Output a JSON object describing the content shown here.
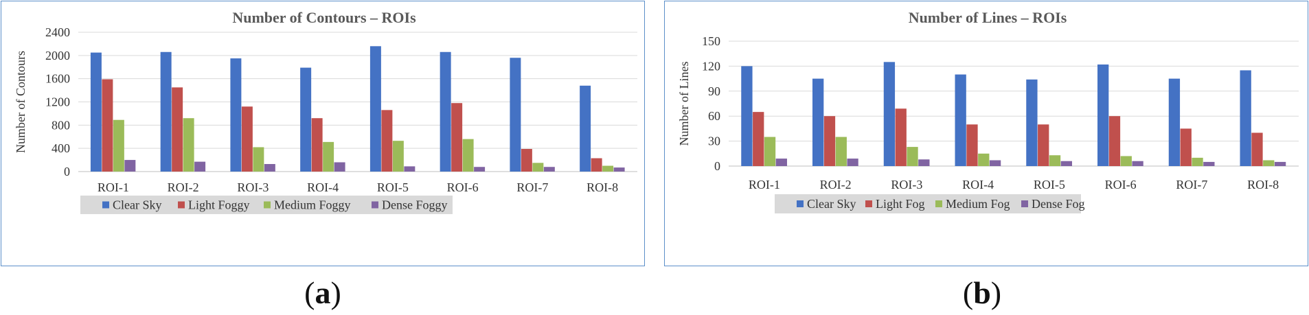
{
  "colors": {
    "series": [
      "#4472C4",
      "#C0504D",
      "#9BBB59",
      "#8064A2"
    ],
    "grid": "#d9d9d9",
    "axis": "#bfbfbf",
    "legend_bg": "#d9d9d9"
  },
  "subfigure_labels": {
    "a": "a",
    "b": "b"
  },
  "chart_data": [
    {
      "type": "bar",
      "title": "Number of Contours – ROIs",
      "xlabel": "",
      "ylabel": "Number of Contours",
      "ylim": [
        0,
        2400
      ],
      "yticks": [
        0,
        400,
        800,
        1200,
        1600,
        2000,
        2400
      ],
      "grid": true,
      "legend_position": "bottom",
      "categories": [
        "ROI-1",
        "ROI-2",
        "ROI-3",
        "ROI-4",
        "ROI-5",
        "ROI-6",
        "ROI-7",
        "ROI-8"
      ],
      "series": [
        {
          "name": "Clear Sky",
          "values": [
            2050,
            2060,
            1950,
            1790,
            2160,
            2060,
            1960,
            1480
          ]
        },
        {
          "name": "Light Foggy",
          "values": [
            1590,
            1450,
            1120,
            920,
            1060,
            1180,
            390,
            230
          ]
        },
        {
          "name": "Medium Foggy",
          "values": [
            890,
            920,
            420,
            510,
            530,
            560,
            150,
            100
          ]
        },
        {
          "name": "Dense Foggy",
          "values": [
            200,
            170,
            130,
            160,
            90,
            80,
            80,
            70
          ]
        }
      ]
    },
    {
      "type": "bar",
      "title": "Number of Lines – ROIs",
      "xlabel": "",
      "ylabel": "Number of Lines",
      "ylim": [
        0,
        150
      ],
      "yticks": [
        0,
        30,
        60,
        90,
        120,
        150
      ],
      "grid": true,
      "legend_position": "bottom",
      "categories": [
        "ROI-1",
        "ROI-2",
        "ROI-3",
        "ROI-4",
        "ROI-5",
        "ROI-6",
        "ROI-7",
        "ROI-8"
      ],
      "series": [
        {
          "name": "Clear Sky",
          "values": [
            120,
            105,
            125,
            110,
            104,
            122,
            105,
            115
          ]
        },
        {
          "name": "Light Fog",
          "values": [
            65,
            60,
            69,
            50,
            50,
            60,
            45,
            40
          ]
        },
        {
          "name": "Medium Fog",
          "values": [
            35,
            35,
            23,
            15,
            13,
            12,
            10,
            7
          ]
        },
        {
          "name": "Dense Fog",
          "values": [
            9,
            9,
            8,
            7,
            6,
            6,
            5,
            5
          ]
        }
      ]
    }
  ]
}
